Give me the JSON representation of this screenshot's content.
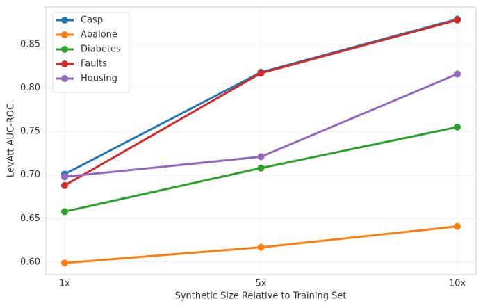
{
  "chart_data": {
    "type": "line",
    "xlabel": "Synthetic Size Relative to Training Set",
    "ylabel": "LevAtt AUC-ROC",
    "categories": [
      "1x",
      "5x",
      "10x"
    ],
    "series": [
      {
        "name": "Casp",
        "color": "#1f77b4",
        "values": [
          0.701,
          0.818,
          0.879
        ]
      },
      {
        "name": "Abalone",
        "color": "#ff7f0e",
        "values": [
          0.599,
          0.617,
          0.641
        ]
      },
      {
        "name": "Diabetes",
        "color": "#2ca02c",
        "values": [
          0.658,
          0.708,
          0.755
        ]
      },
      {
        "name": "Faults",
        "color": "#d62728",
        "values": [
          0.688,
          0.817,
          0.878
        ]
      },
      {
        "name": "Housing",
        "color": "#9467bd",
        "values": [
          0.698,
          0.721,
          0.816
        ]
      }
    ],
    "ylim": [
      0.5856,
      0.893
    ],
    "yticks": [
      {
        "value": 0.6,
        "label": "0.60"
      },
      {
        "value": 0.65,
        "label": "0.65"
      },
      {
        "value": 0.7,
        "label": "0.70"
      },
      {
        "value": 0.75,
        "label": "0.75"
      },
      {
        "value": 0.8,
        "label": "0.80"
      },
      {
        "value": 0.85,
        "label": "0.85"
      }
    ],
    "grid": true,
    "legend": "upper-left"
  }
}
